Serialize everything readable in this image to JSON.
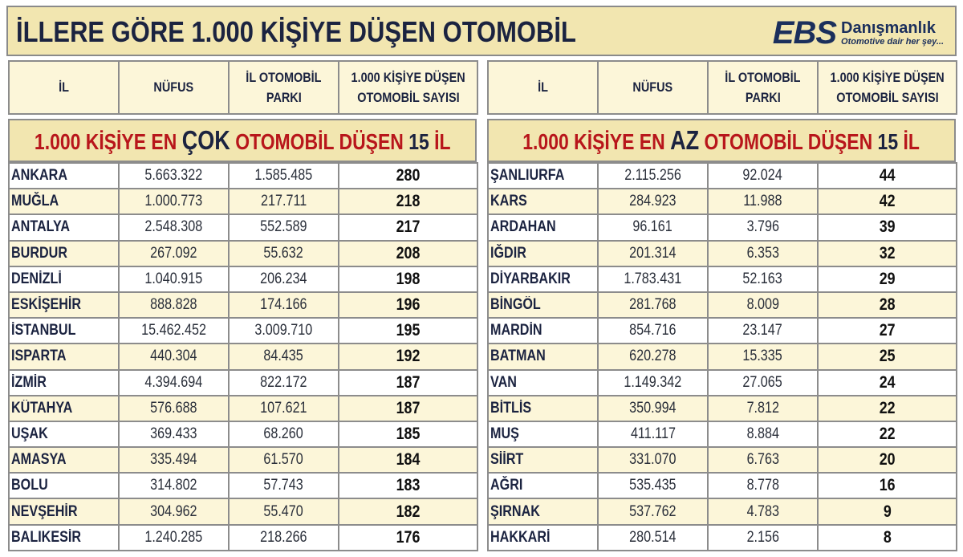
{
  "header": {
    "title": "İLLERE GÖRE 1.000 KİŞİYE DÜŞEN OTOMOBİL",
    "logo": {
      "mark": "EBS",
      "name": "Danışmanlık",
      "slogan": "Otomotive dair her şey..."
    }
  },
  "columns": [
    "İL",
    "NÜFUS",
    "İL OTOMOBİL PARKI",
    "1.000 KİŞİYE DÜŞEN OTOMOBİL SAYISI"
  ],
  "columns_lines": {
    "c0": [
      "İL"
    ],
    "c1": [
      "NÜFUS"
    ],
    "c2": [
      "İL OTOMOBİL",
      "PARKI"
    ],
    "c3": [
      "1.000 KİŞİYE DÜŞEN",
      "OTOMOBİL SAYISI"
    ]
  },
  "left": {
    "banner": {
      "prefix": "1.000 KİŞİYE EN",
      "emphasis": "ÇOK",
      "middle": "OTOMOBİL DÜŞEN",
      "count": "15",
      "suffix": "İL"
    },
    "rows": [
      {
        "il": "ANKARA",
        "nufus": "5.663.322",
        "park": "1.585.485",
        "oran": "280"
      },
      {
        "il": "MUĞLA",
        "nufus": "1.000.773",
        "park": "217.711",
        "oran": "218"
      },
      {
        "il": "ANTALYA",
        "nufus": "2.548.308",
        "park": "552.589",
        "oran": "217"
      },
      {
        "il": "BURDUR",
        "nufus": "267.092",
        "park": "55.632",
        "oran": "208"
      },
      {
        "il": "DENİZLİ",
        "nufus": "1.040.915",
        "park": "206.234",
        "oran": "198"
      },
      {
        "il": "ESKİŞEHİR",
        "nufus": "888.828",
        "park": "174.166",
        "oran": "196"
      },
      {
        "il": "İSTANBUL",
        "nufus": "15.462.452",
        "park": "3.009.710",
        "oran": "195"
      },
      {
        "il": "ISPARTA",
        "nufus": "440.304",
        "park": "84.435",
        "oran": "192"
      },
      {
        "il": "İZMİR",
        "nufus": "4.394.694",
        "park": "822.172",
        "oran": "187"
      },
      {
        "il": "KÜTAHYA",
        "nufus": "576.688",
        "park": "107.621",
        "oran": "187"
      },
      {
        "il": "UŞAK",
        "nufus": "369.433",
        "park": "68.260",
        "oran": "185"
      },
      {
        "il": "AMASYA",
        "nufus": "335.494",
        "park": "61.570",
        "oran": "184"
      },
      {
        "il": "BOLU",
        "nufus": "314.802",
        "park": "57.743",
        "oran": "183"
      },
      {
        "il": "NEVŞEHİR",
        "nufus": "304.962",
        "park": "55.470",
        "oran": "182"
      },
      {
        "il": "BALIKESİR",
        "nufus": "1.240.285",
        "park": "218.266",
        "oran": "176"
      }
    ]
  },
  "right": {
    "banner": {
      "prefix": "1.000 KİŞİYE EN",
      "emphasis": "AZ",
      "middle": "OTOMOBİL DÜŞEN",
      "count": "15",
      "suffix": "İL"
    },
    "rows": [
      {
        "il": "ŞANLIURFA",
        "nufus": "2.115.256",
        "park": "92.024",
        "oran": "44"
      },
      {
        "il": "KARS",
        "nufus": "284.923",
        "park": "11.988",
        "oran": "42"
      },
      {
        "il": "ARDAHAN",
        "nufus": "96.161",
        "park": "3.796",
        "oran": "39"
      },
      {
        "il": "IĞDIR",
        "nufus": "201.314",
        "park": "6.353",
        "oran": "32"
      },
      {
        "il": "DİYARBAKIR",
        "nufus": "1.783.431",
        "park": "52.163",
        "oran": "29"
      },
      {
        "il": "BİNGÖL",
        "nufus": "281.768",
        "park": "8.009",
        "oran": "28"
      },
      {
        "il": "MARDİN",
        "nufus": "854.716",
        "park": "23.147",
        "oran": "27"
      },
      {
        "il": "BATMAN",
        "nufus": "620.278",
        "park": "15.335",
        "oran": "25"
      },
      {
        "il": "VAN",
        "nufus": "1.149.342",
        "park": "27.065",
        "oran": "24"
      },
      {
        "il": "BİTLİS",
        "nufus": "350.994",
        "park": "7.812",
        "oran": "22"
      },
      {
        "il": "MUŞ",
        "nufus": "411.117",
        "park": "8.884",
        "oran": "22"
      },
      {
        "il": "SİİRT",
        "nufus": "331.070",
        "park": "6.763",
        "oran": "20"
      },
      {
        "il": "AĞRI",
        "nufus": "535.435",
        "park": "8.778",
        "oran": "16"
      },
      {
        "il": "ŞIRNAK",
        "nufus": "537.762",
        "park": "4.783",
        "oran": "9"
      },
      {
        "il": "HAKKARİ",
        "nufus": "280.514",
        "park": "2.156",
        "oran": "8"
      }
    ]
  },
  "colors": {
    "banner_bg": "#f2e6b0",
    "stripe_bg": "#fcf6d9",
    "accent_red": "#b8161b",
    "navy": "#1b2340",
    "border": "#8c8c8c"
  }
}
